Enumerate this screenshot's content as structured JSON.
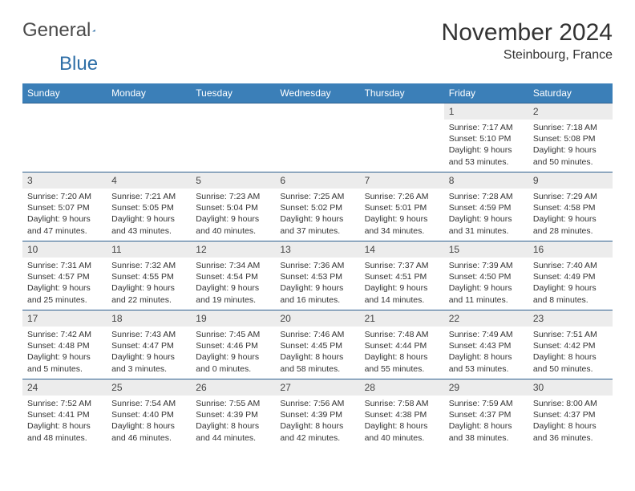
{
  "logo": {
    "text1": "General",
    "text2": "Blue"
  },
  "title": "November 2024",
  "location": "Steinbourg, France",
  "colors": {
    "header_bg": "#3b7fb8",
    "header_text": "#ffffff",
    "daynum_bg": "#ececec",
    "border": "#2d5f8f",
    "logo_gray": "#4a4a4a",
    "logo_blue": "#2f6fa7"
  },
  "weekdays": [
    "Sunday",
    "Monday",
    "Tuesday",
    "Wednesday",
    "Thursday",
    "Friday",
    "Saturday"
  ],
  "cells": [
    {
      "day": "",
      "sunrise": "",
      "sunset": "",
      "daylight": ""
    },
    {
      "day": "",
      "sunrise": "",
      "sunset": "",
      "daylight": ""
    },
    {
      "day": "",
      "sunrise": "",
      "sunset": "",
      "daylight": ""
    },
    {
      "day": "",
      "sunrise": "",
      "sunset": "",
      "daylight": ""
    },
    {
      "day": "",
      "sunrise": "",
      "sunset": "",
      "daylight": ""
    },
    {
      "day": "1",
      "sunrise": "Sunrise: 7:17 AM",
      "sunset": "Sunset: 5:10 PM",
      "daylight": "Daylight: 9 hours and 53 minutes."
    },
    {
      "day": "2",
      "sunrise": "Sunrise: 7:18 AM",
      "sunset": "Sunset: 5:08 PM",
      "daylight": "Daylight: 9 hours and 50 minutes."
    },
    {
      "day": "3",
      "sunrise": "Sunrise: 7:20 AM",
      "sunset": "Sunset: 5:07 PM",
      "daylight": "Daylight: 9 hours and 47 minutes."
    },
    {
      "day": "4",
      "sunrise": "Sunrise: 7:21 AM",
      "sunset": "Sunset: 5:05 PM",
      "daylight": "Daylight: 9 hours and 43 minutes."
    },
    {
      "day": "5",
      "sunrise": "Sunrise: 7:23 AM",
      "sunset": "Sunset: 5:04 PM",
      "daylight": "Daylight: 9 hours and 40 minutes."
    },
    {
      "day": "6",
      "sunrise": "Sunrise: 7:25 AM",
      "sunset": "Sunset: 5:02 PM",
      "daylight": "Daylight: 9 hours and 37 minutes."
    },
    {
      "day": "7",
      "sunrise": "Sunrise: 7:26 AM",
      "sunset": "Sunset: 5:01 PM",
      "daylight": "Daylight: 9 hours and 34 minutes."
    },
    {
      "day": "8",
      "sunrise": "Sunrise: 7:28 AM",
      "sunset": "Sunset: 4:59 PM",
      "daylight": "Daylight: 9 hours and 31 minutes."
    },
    {
      "day": "9",
      "sunrise": "Sunrise: 7:29 AM",
      "sunset": "Sunset: 4:58 PM",
      "daylight": "Daylight: 9 hours and 28 minutes."
    },
    {
      "day": "10",
      "sunrise": "Sunrise: 7:31 AM",
      "sunset": "Sunset: 4:57 PM",
      "daylight": "Daylight: 9 hours and 25 minutes."
    },
    {
      "day": "11",
      "sunrise": "Sunrise: 7:32 AM",
      "sunset": "Sunset: 4:55 PM",
      "daylight": "Daylight: 9 hours and 22 minutes."
    },
    {
      "day": "12",
      "sunrise": "Sunrise: 7:34 AM",
      "sunset": "Sunset: 4:54 PM",
      "daylight": "Daylight: 9 hours and 19 minutes."
    },
    {
      "day": "13",
      "sunrise": "Sunrise: 7:36 AM",
      "sunset": "Sunset: 4:53 PM",
      "daylight": "Daylight: 9 hours and 16 minutes."
    },
    {
      "day": "14",
      "sunrise": "Sunrise: 7:37 AM",
      "sunset": "Sunset: 4:51 PM",
      "daylight": "Daylight: 9 hours and 14 minutes."
    },
    {
      "day": "15",
      "sunrise": "Sunrise: 7:39 AM",
      "sunset": "Sunset: 4:50 PM",
      "daylight": "Daylight: 9 hours and 11 minutes."
    },
    {
      "day": "16",
      "sunrise": "Sunrise: 7:40 AM",
      "sunset": "Sunset: 4:49 PM",
      "daylight": "Daylight: 9 hours and 8 minutes."
    },
    {
      "day": "17",
      "sunrise": "Sunrise: 7:42 AM",
      "sunset": "Sunset: 4:48 PM",
      "daylight": "Daylight: 9 hours and 5 minutes."
    },
    {
      "day": "18",
      "sunrise": "Sunrise: 7:43 AM",
      "sunset": "Sunset: 4:47 PM",
      "daylight": "Daylight: 9 hours and 3 minutes."
    },
    {
      "day": "19",
      "sunrise": "Sunrise: 7:45 AM",
      "sunset": "Sunset: 4:46 PM",
      "daylight": "Daylight: 9 hours and 0 minutes."
    },
    {
      "day": "20",
      "sunrise": "Sunrise: 7:46 AM",
      "sunset": "Sunset: 4:45 PM",
      "daylight": "Daylight: 8 hours and 58 minutes."
    },
    {
      "day": "21",
      "sunrise": "Sunrise: 7:48 AM",
      "sunset": "Sunset: 4:44 PM",
      "daylight": "Daylight: 8 hours and 55 minutes."
    },
    {
      "day": "22",
      "sunrise": "Sunrise: 7:49 AM",
      "sunset": "Sunset: 4:43 PM",
      "daylight": "Daylight: 8 hours and 53 minutes."
    },
    {
      "day": "23",
      "sunrise": "Sunrise: 7:51 AM",
      "sunset": "Sunset: 4:42 PM",
      "daylight": "Daylight: 8 hours and 50 minutes."
    },
    {
      "day": "24",
      "sunrise": "Sunrise: 7:52 AM",
      "sunset": "Sunset: 4:41 PM",
      "daylight": "Daylight: 8 hours and 48 minutes."
    },
    {
      "day": "25",
      "sunrise": "Sunrise: 7:54 AM",
      "sunset": "Sunset: 4:40 PM",
      "daylight": "Daylight: 8 hours and 46 minutes."
    },
    {
      "day": "26",
      "sunrise": "Sunrise: 7:55 AM",
      "sunset": "Sunset: 4:39 PM",
      "daylight": "Daylight: 8 hours and 44 minutes."
    },
    {
      "day": "27",
      "sunrise": "Sunrise: 7:56 AM",
      "sunset": "Sunset: 4:39 PM",
      "daylight": "Daylight: 8 hours and 42 minutes."
    },
    {
      "day": "28",
      "sunrise": "Sunrise: 7:58 AM",
      "sunset": "Sunset: 4:38 PM",
      "daylight": "Daylight: 8 hours and 40 minutes."
    },
    {
      "day": "29",
      "sunrise": "Sunrise: 7:59 AM",
      "sunset": "Sunset: 4:37 PM",
      "daylight": "Daylight: 8 hours and 38 minutes."
    },
    {
      "day": "30",
      "sunrise": "Sunrise: 8:00 AM",
      "sunset": "Sunset: 4:37 PM",
      "daylight": "Daylight: 8 hours and 36 minutes."
    }
  ]
}
